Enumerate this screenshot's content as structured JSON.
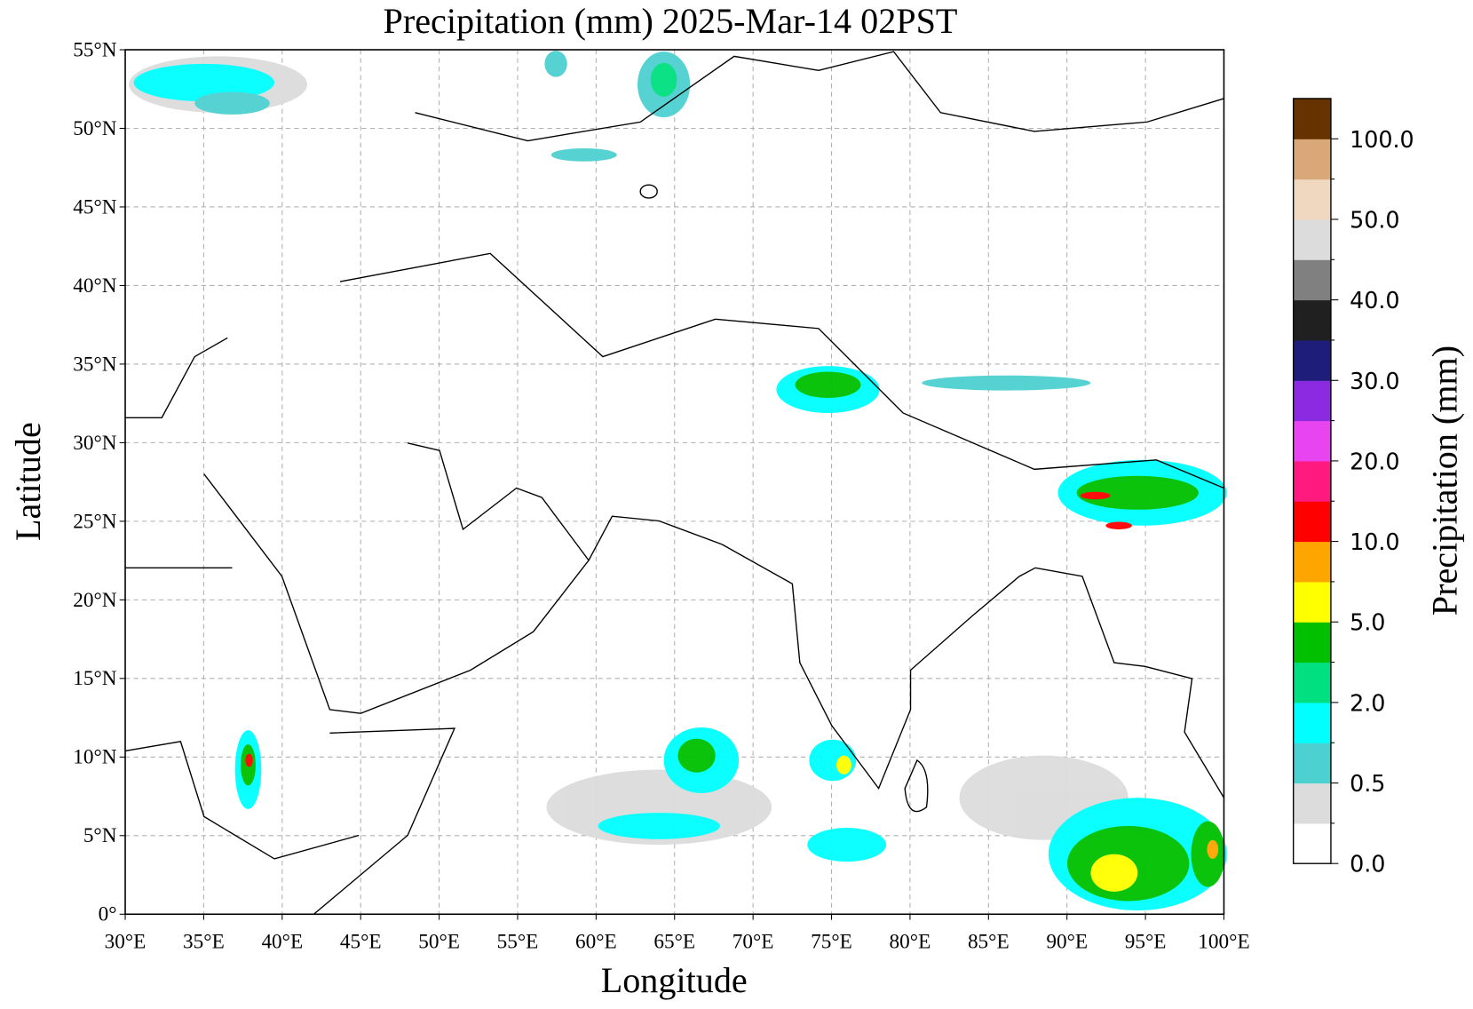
{
  "chart_data": {
    "type": "map",
    "title": "Precipitation (mm)  2025-Mar-14 02PST",
    "x_label": "Longitude",
    "y_label": "Latitude",
    "xlim": [
      30,
      100
    ],
    "ylim": [
      0,
      55
    ],
    "xticks": [
      {
        "value": 30,
        "label": "30°E"
      },
      {
        "value": 35,
        "label": "35°E"
      },
      {
        "value": 40,
        "label": "40°E"
      },
      {
        "value": 45,
        "label": "45°E"
      },
      {
        "value": 50,
        "label": "50°E"
      },
      {
        "value": 55,
        "label": "55°E"
      },
      {
        "value": 60,
        "label": "60°E"
      },
      {
        "value": 65,
        "label": "65°E"
      },
      {
        "value": 70,
        "label": "70°E"
      },
      {
        "value": 75,
        "label": "75°E"
      },
      {
        "value": 80,
        "label": "80°E"
      },
      {
        "value": 85,
        "label": "85°E"
      },
      {
        "value": 90,
        "label": "90°E"
      },
      {
        "value": 95,
        "label": "95°E"
      },
      {
        "value": 100,
        "label": "100°E"
      }
    ],
    "yticks": [
      {
        "value": 0,
        "label": "0°"
      },
      {
        "value": 5,
        "label": "5°N"
      },
      {
        "value": 10,
        "label": "10°N"
      },
      {
        "value": 15,
        "label": "15°N"
      },
      {
        "value": 20,
        "label": "20°N"
      },
      {
        "value": 25,
        "label": "25°N"
      },
      {
        "value": 30,
        "label": "30°N"
      },
      {
        "value": 35,
        "label": "35°N"
      },
      {
        "value": 40,
        "label": "40°N"
      },
      {
        "value": 45,
        "label": "45°N"
      },
      {
        "value": 50,
        "label": "50°N"
      },
      {
        "value": 55,
        "label": "55°N"
      }
    ],
    "grid": true,
    "colorbar": {
      "label": "Precipitation (mm)",
      "colors": [
        "#ffffff",
        "#dcdcdc",
        "#4dd0d0",
        "#00ffff",
        "#00e080",
        "#00c000",
        "#ffff00",
        "#ffa500",
        "#ff0000",
        "#ff1a80",
        "#e845f0",
        "#8a2be2",
        "#1e1e7a",
        "#202020",
        "#808080",
        "#dcdcdc",
        "#f0d8c0",
        "#d8a878",
        "#663300"
      ],
      "ticks": [
        {
          "value": 0,
          "label": "0.0"
        },
        {
          "value": 0.5,
          "label": "0.5"
        },
        {
          "value": 2,
          "label": "2.0"
        },
        {
          "value": 5,
          "label": "5.0"
        },
        {
          "value": 10,
          "label": "10.0"
        },
        {
          "value": 20,
          "label": "20.0"
        },
        {
          "value": 30,
          "label": "30.0"
        },
        {
          "value": 40,
          "label": "40.0"
        },
        {
          "value": 50,
          "label": "50.0"
        },
        {
          "value": 100,
          "label": "100.0"
        }
      ]
    }
  }
}
